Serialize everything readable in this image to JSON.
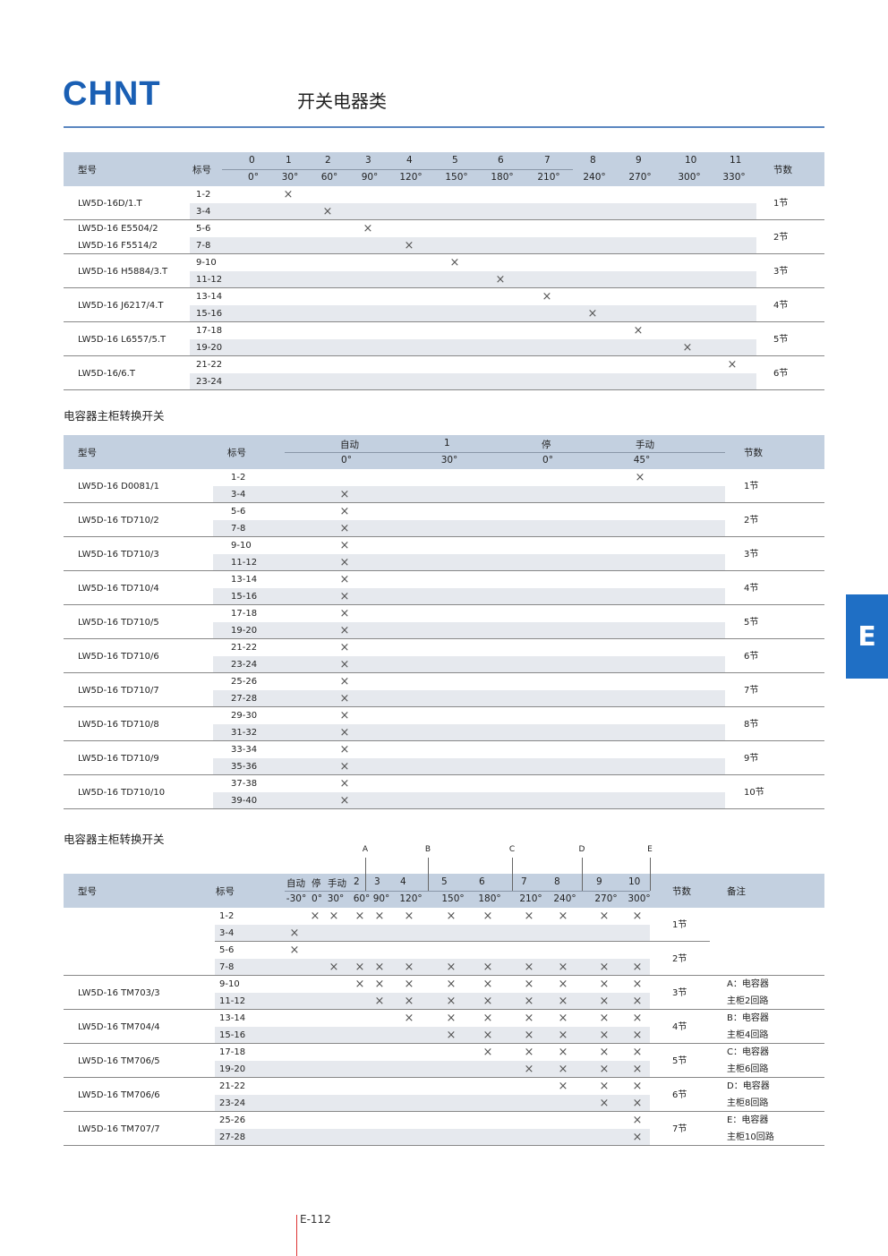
{
  "header": {
    "logo": "CHNT",
    "title": "开关电器类"
  },
  "side_tab": "E",
  "page_number": "E-112",
  "table1": {
    "headers": {
      "model": "型号",
      "terminal": "标号",
      "sections": "节数"
    },
    "positions": [
      {
        "num": "0",
        "angle": "0°"
      },
      {
        "num": "1",
        "angle": "30°"
      },
      {
        "num": "2",
        "angle": "60°"
      },
      {
        "num": "3",
        "angle": "90°"
      },
      {
        "num": "4",
        "angle": "120°"
      },
      {
        "num": "5",
        "angle": "150°"
      },
      {
        "num": "6",
        "angle": "180°"
      },
      {
        "num": "7",
        "angle": "210°"
      },
      {
        "num": "8",
        "angle": "240°"
      },
      {
        "num": "9",
        "angle": "270°"
      },
      {
        "num": "10",
        "angle": "300°"
      },
      {
        "num": "11",
        "angle": "330°"
      }
    ],
    "groups": [
      {
        "model": "LW5D-16D/1.T",
        "sections": "1节",
        "rows": [
          {
            "terminal": "1-2",
            "marks": [
              1
            ]
          },
          {
            "terminal": "3-4",
            "marks": [
              2
            ]
          }
        ]
      },
      {
        "model": "",
        "sections": "2节",
        "rows": [
          {
            "model": "LW5D-16 E5504/2",
            "terminal": "5-6",
            "marks": [
              3
            ]
          },
          {
            "model": "LW5D-16 F5514/2",
            "terminal": "7-8",
            "marks": [
              4
            ]
          }
        ]
      },
      {
        "model": "LW5D-16 H5884/3.T",
        "sections": "3节",
        "rows": [
          {
            "terminal": "9-10",
            "marks": [
              5
            ]
          },
          {
            "terminal": "11-12",
            "marks": [
              6
            ]
          }
        ]
      },
      {
        "model": "LW5D-16 J6217/4.T",
        "sections": "4节",
        "rows": [
          {
            "terminal": "13-14",
            "marks": [
              7
            ]
          },
          {
            "terminal": "15-16",
            "marks": [
              8
            ]
          }
        ]
      },
      {
        "model": "LW5D-16 L6557/5.T",
        "sections": "5节",
        "rows": [
          {
            "terminal": "17-18",
            "marks": [
              9
            ]
          },
          {
            "terminal": "19-20",
            "marks": [
              10
            ]
          }
        ]
      },
      {
        "model": "LW5D-16/6.T",
        "sections": "6节",
        "rows": [
          {
            "terminal": "21-22",
            "marks": [
              11
            ]
          },
          {
            "terminal": "23-24",
            "marks": []
          }
        ]
      }
    ]
  },
  "section2_title": "电容器主柜转换开关",
  "table2": {
    "headers": {
      "model": "型号",
      "terminal": "标号",
      "sections": "节数"
    },
    "positions": [
      {
        "num": "自动",
        "angle": "0°"
      },
      {
        "num": "1",
        "angle": "30°"
      },
      {
        "num": "停",
        "angle": "0°"
      },
      {
        "num": "手动",
        "angle": "45°"
      }
    ],
    "groups": [
      {
        "model": "LW5D-16 D0081/1",
        "sections": "1节",
        "rows": [
          {
            "terminal": "1-2",
            "marks": [
              3
            ]
          },
          {
            "terminal": "3-4",
            "marks": [
              0
            ]
          }
        ]
      },
      {
        "model": "LW5D-16 TD710/2",
        "sections": "2节",
        "rows": [
          {
            "terminal": "5-6",
            "marks": [
              0
            ]
          },
          {
            "terminal": "7-8",
            "marks": [
              0
            ]
          }
        ]
      },
      {
        "model": "LW5D-16 TD710/3",
        "sections": "3节",
        "rows": [
          {
            "terminal": "9-10",
            "marks": [
              0
            ]
          },
          {
            "terminal": "11-12",
            "marks": [
              0
            ]
          }
        ]
      },
      {
        "model": "LW5D-16 TD710/4",
        "sections": "4节",
        "rows": [
          {
            "terminal": "13-14",
            "marks": [
              0
            ]
          },
          {
            "terminal": "15-16",
            "marks": [
              0
            ]
          }
        ]
      },
      {
        "model": "LW5D-16 TD710/5",
        "sections": "5节",
        "rows": [
          {
            "terminal": "17-18",
            "marks": [
              0
            ]
          },
          {
            "terminal": "19-20",
            "marks": [
              0
            ]
          }
        ]
      },
      {
        "model": "LW5D-16 TD710/6",
        "sections": "6节",
        "rows": [
          {
            "terminal": "21-22",
            "marks": [
              0
            ]
          },
          {
            "terminal": "23-24",
            "marks": [
              0
            ]
          }
        ]
      },
      {
        "model": "LW5D-16 TD710/7",
        "sections": "7节",
        "rows": [
          {
            "terminal": "25-26",
            "marks": [
              0
            ]
          },
          {
            "terminal": "27-28",
            "marks": [
              0
            ]
          }
        ]
      },
      {
        "model": "LW5D-16 TD710/8",
        "sections": "8节",
        "rows": [
          {
            "terminal": "29-30",
            "marks": [
              0
            ]
          },
          {
            "terminal": "31-32",
            "marks": [
              0
            ]
          }
        ]
      },
      {
        "model": "LW5D-16 TD710/9",
        "sections": "9节",
        "rows": [
          {
            "terminal": "33-34",
            "marks": [
              0
            ]
          },
          {
            "terminal": "35-36",
            "marks": [
              0
            ]
          }
        ]
      },
      {
        "model": "LW5D-16 TD710/10",
        "sections": "10节",
        "rows": [
          {
            "terminal": "37-38",
            "marks": [
              0
            ]
          },
          {
            "terminal": "39-40",
            "marks": [
              0
            ]
          }
        ]
      }
    ]
  },
  "section3_title": "电容器主柜转换开关",
  "table3": {
    "headers": {
      "model": "型号",
      "terminal": "标号",
      "sections": "节数",
      "notes": "备注"
    },
    "circuit_markers": [
      "A",
      "B",
      "C",
      "D",
      "E"
    ],
    "positions": [
      {
        "num": "自动",
        "angle": "-30°"
      },
      {
        "num": "停",
        "angle": "0°"
      },
      {
        "num": "手动",
        "angle": "30°"
      },
      {
        "num": "2",
        "angle": "60°"
      },
      {
        "num": "3",
        "angle": "90°"
      },
      {
        "num": "4",
        "angle": "120°"
      },
      {
        "num": "5",
        "angle": "150°"
      },
      {
        "num": "6",
        "angle": "180°"
      },
      {
        "num": "7",
        "angle": "210°"
      },
      {
        "num": "8",
        "angle": "240°"
      },
      {
        "num": "9",
        "angle": "270°"
      },
      {
        "num": "10",
        "angle": "300°"
      }
    ],
    "groups": [
      {
        "model": "",
        "sections": "1节",
        "note": [],
        "rows": [
          {
            "terminal": "1-2",
            "marks": [
              1,
              2,
              3,
              4,
              5,
              6,
              7,
              8,
              9,
              10,
              11
            ]
          },
          {
            "terminal": "3-4",
            "marks": [
              0
            ]
          }
        ]
      },
      {
        "model": "",
        "sections": "2节",
        "note": [],
        "rows": [
          {
            "terminal": "5-6",
            "marks": [
              0
            ]
          },
          {
            "terminal": "7-8",
            "marks": [
              2,
              3,
              4,
              5,
              6,
              7,
              8,
              9,
              10,
              11
            ]
          }
        ]
      },
      {
        "model": "LW5D-16 TM703/3",
        "sections": "3节",
        "note": [
          "A：电容器",
          "主柜2回路"
        ],
        "rows": [
          {
            "terminal": "9-10",
            "marks": [
              3,
              4,
              5,
              6,
              7,
              8,
              9,
              10,
              11
            ]
          },
          {
            "terminal": "11-12",
            "marks": [
              4,
              5,
              6,
              7,
              8,
              9,
              10,
              11
            ]
          }
        ]
      },
      {
        "model": "LW5D-16 TM704/4",
        "sections": "4节",
        "note": [
          "B：电容器",
          "主柜4回路"
        ],
        "rows": [
          {
            "terminal": "13-14",
            "marks": [
              5,
              6,
              7,
              8,
              9,
              10,
              11
            ]
          },
          {
            "terminal": "15-16",
            "marks": [
              6,
              7,
              8,
              9,
              10,
              11
            ]
          }
        ]
      },
      {
        "model": "LW5D-16 TM706/5",
        "sections": "5节",
        "note": [
          "C：电容器",
          "主柜6回路"
        ],
        "rows": [
          {
            "terminal": "17-18",
            "marks": [
              7,
              8,
              9,
              10,
              11
            ]
          },
          {
            "terminal": "19-20",
            "marks": [
              8,
              9,
              10,
              11
            ]
          }
        ]
      },
      {
        "model": "LW5D-16 TM706/6",
        "sections": "6节",
        "note": [
          "D：电容器",
          "主柜8回路"
        ],
        "rows": [
          {
            "terminal": "21-22",
            "marks": [
              9,
              10,
              11
            ]
          },
          {
            "terminal": "23-24",
            "marks": [
              10,
              11
            ]
          }
        ]
      },
      {
        "model": "LW5D-16 TM707/7",
        "sections": "7节",
        "note": [
          "E：电容器",
          "主柜10回路"
        ],
        "rows": [
          {
            "terminal": "25-26",
            "marks": [
              11
            ]
          },
          {
            "terminal": "27-28",
            "marks": [
              11
            ]
          }
        ]
      }
    ]
  },
  "mark_symbol": "×",
  "colors": {
    "brand": "#1a5fb4",
    "header_bg": "#c3d0e0",
    "stripe": "#e6e9ee",
    "tab": "#1f6fc5",
    "page_line": "#dd3333"
  }
}
